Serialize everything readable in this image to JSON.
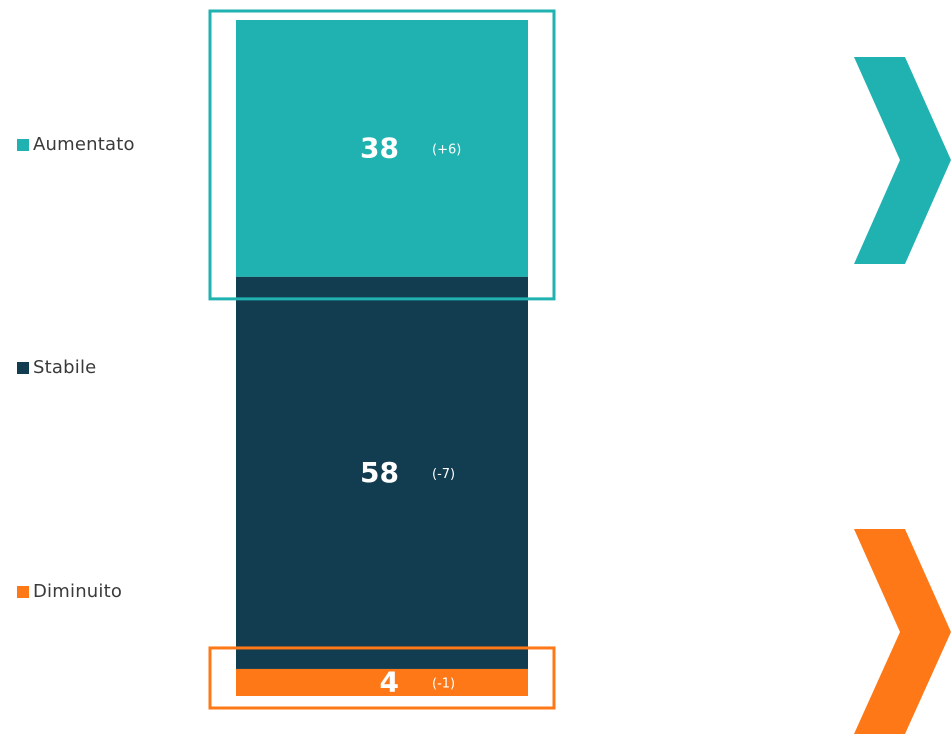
{
  "chart_data": {
    "type": "bar",
    "stacked": true,
    "title": "",
    "xlabel": "",
    "ylabel": "",
    "ylim": [
      0,
      100
    ],
    "series": [
      {
        "name": "Aumentato",
        "value": 38,
        "change": "(+6)",
        "color": "#20B2B0",
        "highlight": true
      },
      {
        "name": "Stabile",
        "value": 58,
        "change": "(-7)",
        "color": "#123C4F",
        "highlight": false
      },
      {
        "name": "Diminuito",
        "value": 4,
        "change": "(-1)",
        "color": "#FF7817",
        "highlight": true
      }
    ],
    "legend_placement": "left",
    "grid": false
  },
  "indicators": [
    {
      "name": "up-chevron-icon",
      "color": "#20B2B0"
    },
    {
      "name": "down-chevron-icon",
      "color": "#FF7817"
    }
  ]
}
